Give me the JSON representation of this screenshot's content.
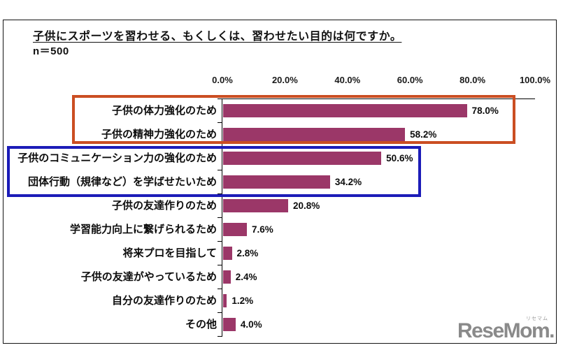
{
  "page": {
    "title": "子供にスポーツを習わせる、もくしくは、習わせたい目的は何ですか。",
    "sample_size": "n＝500"
  },
  "chart_data": {
    "type": "bar",
    "orientation": "horizontal",
    "categories": [
      "子供の体力強化のため",
      "子供の精神力強化のため",
      "子供のコミュニケーション力の強化のため",
      "団体行動（規律など）を学ばせたいため",
      "子供の友達作りのため",
      "学習能力向上に繋げられるため",
      "将来プロを目指して",
      "子供の友達がやっているため",
      "自分の友達作りのため",
      "その他"
    ],
    "values": [
      78.0,
      58.2,
      50.6,
      34.2,
      20.8,
      7.6,
      2.8,
      2.4,
      1.2,
      4.0
    ],
    "value_labels": [
      "78.0%",
      "58.2%",
      "50.6%",
      "34.2%",
      "20.8%",
      "7.6%",
      "2.8%",
      "2.4%",
      "1.2%",
      "4.0%"
    ],
    "xlabel": "",
    "ylabel": "",
    "xlim": [
      0,
      100
    ],
    "x_ticks": [
      "0.0%",
      "20.0%",
      "40.0%",
      "60.0%",
      "80.0%",
      "100.0%"
    ],
    "bar_color": "#9B3768",
    "legend": "none",
    "grid": "off",
    "highlights": [
      {
        "name": "top-two-items",
        "rows": [
          0,
          1
        ],
        "color": "#CB4E22"
      },
      {
        "name": "items-three-four",
        "rows": [
          2,
          3
        ],
        "color": "#1C1CB8"
      }
    ]
  },
  "branding": {
    "logo_text": "ReseMom.",
    "logo_ruby": "リセマム",
    "logo_color": "#8a8a8a"
  }
}
